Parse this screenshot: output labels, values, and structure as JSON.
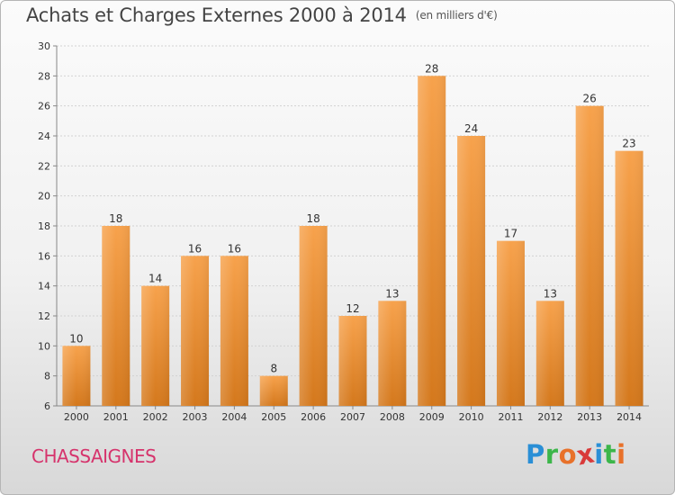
{
  "title": "Achats et Charges Externes 2000 à 2014",
  "unit": "(en milliers d'€)",
  "commune": "CHASSAIGNES",
  "logo": {
    "letters": [
      "P",
      "r",
      "o",
      "x",
      "i",
      "t",
      "i"
    ],
    "colors": [
      "#2a8fd6",
      "#3cb64a",
      "#e8712a",
      "#d93a3a",
      "#2a8fd6",
      "#3cb64a",
      "#e8712a"
    ]
  },
  "chart_data": {
    "type": "bar",
    "categories": [
      "2000",
      "2001",
      "2002",
      "2003",
      "2004",
      "2005",
      "2006",
      "2007",
      "2008",
      "2009",
      "2010",
      "2011",
      "2012",
      "2013",
      "2014"
    ],
    "values": [
      10,
      18,
      14,
      16,
      16,
      8,
      18,
      12,
      13,
      28,
      24,
      17,
      13,
      26,
      23
    ],
    "ylim": [
      6,
      30
    ],
    "yticks": [
      6,
      8,
      10,
      12,
      14,
      16,
      18,
      20,
      22,
      24,
      26,
      28,
      30
    ],
    "grid": true,
    "bar_color_top": "#f7a24c",
    "bar_color_bottom": "#d4781c"
  }
}
